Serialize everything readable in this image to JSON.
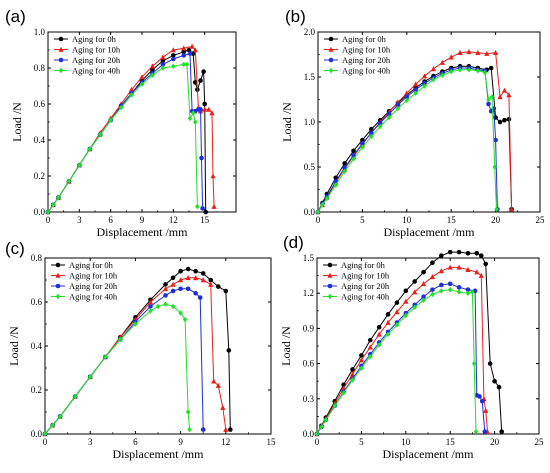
{
  "chart_data": [
    {
      "type": "line",
      "panel_label": "(a)",
      "xlabel": "Displacement /mm",
      "ylabel": "Load /N",
      "xlim": [
        0,
        18
      ],
      "ylim": [
        0,
        1.0
      ],
      "xticks": [
        0,
        3,
        6,
        9,
        12,
        15
      ],
      "yticks": [
        0.0,
        0.2,
        0.4,
        0.6,
        0.8,
        1.0
      ],
      "legend_position": "top-left",
      "series": [
        {
          "name": "Aging for 0h",
          "color": "#000000",
          "marker": "circle",
          "x": [
            0,
            0.5,
            1,
            2,
            3,
            4,
            5,
            6,
            7,
            8,
            9,
            10,
            11,
            12,
            13,
            13.5,
            13.9,
            14.1,
            14.3,
            14.6,
            14.9,
            15.0,
            15.1
          ],
          "y": [
            0,
            0.04,
            0.08,
            0.17,
            0.26,
            0.35,
            0.43,
            0.51,
            0.59,
            0.66,
            0.73,
            0.79,
            0.84,
            0.87,
            0.89,
            0.9,
            0.88,
            0.72,
            0.68,
            0.73,
            0.78,
            0.6,
            0.0
          ]
        },
        {
          "name": "Aging for 10h",
          "color": "#e8201a",
          "marker": "triangle",
          "x": [
            0,
            0.5,
            1,
            2,
            3,
            4,
            5,
            6,
            7,
            8,
            9,
            10,
            11,
            12,
            13,
            13.8,
            14.1,
            14.4,
            14.6,
            15,
            15.4,
            15.7,
            15.8,
            15.9
          ],
          "y": [
            0,
            0.04,
            0.08,
            0.17,
            0.26,
            0.35,
            0.44,
            0.52,
            0.6,
            0.68,
            0.75,
            0.81,
            0.86,
            0.9,
            0.91,
            0.92,
            0.9,
            0.58,
            0.56,
            0.57,
            0.57,
            0.55,
            0.2,
            0.03
          ]
        },
        {
          "name": "Aging for 20h",
          "color": "#1f2fd6",
          "marker": "circle",
          "x": [
            0,
            0.5,
            1,
            2,
            3,
            4,
            5,
            6,
            7,
            8,
            9,
            10,
            11,
            12,
            13,
            13.6,
            13.8,
            14.1,
            14.4,
            14.6,
            14.7,
            14.8
          ],
          "y": [
            0,
            0.04,
            0.08,
            0.17,
            0.26,
            0.35,
            0.43,
            0.51,
            0.59,
            0.66,
            0.72,
            0.77,
            0.82,
            0.85,
            0.87,
            0.88,
            0.56,
            0.56,
            0.57,
            0.57,
            0.3,
            0.02
          ]
        },
        {
          "name": "Aging for 40h",
          "color": "#22e02a",
          "marker": "diamond",
          "x": [
            0,
            0.5,
            1,
            2,
            3,
            4,
            5,
            6,
            7,
            8,
            9,
            10,
            11,
            12,
            13,
            13.3,
            13.6,
            13.9,
            14.1,
            14.3
          ],
          "y": [
            0,
            0.04,
            0.08,
            0.17,
            0.26,
            0.35,
            0.43,
            0.51,
            0.58,
            0.65,
            0.71,
            0.76,
            0.8,
            0.81,
            0.82,
            0.82,
            0.52,
            0.55,
            0.5,
            0.03
          ]
        }
      ]
    },
    {
      "type": "line",
      "panel_label": "(b)",
      "xlabel": "Displacement /mm",
      "ylabel": "Load /N",
      "xlim": [
        0,
        25
      ],
      "ylim": [
        0,
        2.0
      ],
      "xticks": [
        0,
        5,
        10,
        15,
        20,
        25
      ],
      "yticks": [
        0.0,
        0.5,
        1.0,
        1.5,
        2.0
      ],
      "legend_position": "top-left",
      "series": [
        {
          "name": "Aging for 0h",
          "color": "#000000",
          "marker": "circle",
          "x": [
            0,
            0.5,
            1,
            2,
            3,
            4,
            5,
            6,
            7,
            8,
            9,
            10,
            11,
            12,
            13,
            14,
            15,
            16,
            17,
            18,
            19,
            19.5,
            20,
            20.5,
            21,
            21.5,
            21.8
          ],
          "y": [
            0,
            0.1,
            0.2,
            0.38,
            0.54,
            0.68,
            0.8,
            0.92,
            1.02,
            1.12,
            1.21,
            1.3,
            1.38,
            1.45,
            1.51,
            1.56,
            1.6,
            1.62,
            1.62,
            1.6,
            1.58,
            1.6,
            1.05,
            1.0,
            1.02,
            1.03,
            0.03
          ]
        },
        {
          "name": "Aging for 10h",
          "color": "#e8201a",
          "marker": "triangle",
          "x": [
            0,
            0.5,
            1,
            2,
            3,
            4,
            5,
            6,
            7,
            8,
            9,
            10,
            11,
            12,
            13,
            14,
            15,
            16,
            17,
            18,
            19,
            20,
            20.5,
            21,
            21.5,
            21.8
          ],
          "y": [
            0,
            0.08,
            0.16,
            0.33,
            0.48,
            0.62,
            0.75,
            0.88,
            1.0,
            1.11,
            1.22,
            1.32,
            1.42,
            1.51,
            1.59,
            1.66,
            1.72,
            1.77,
            1.78,
            1.77,
            1.76,
            1.77,
            1.28,
            1.35,
            1.3,
            0.03
          ]
        },
        {
          "name": "Aging for 20h",
          "color": "#1f2fd6",
          "marker": "circle",
          "x": [
            0,
            0.5,
            1,
            2,
            3,
            4,
            5,
            6,
            7,
            8,
            9,
            10,
            11,
            12,
            13,
            14,
            15,
            16,
            17,
            18,
            18.8,
            19.2,
            19.5,
            19.8,
            20.0,
            20.2
          ],
          "y": [
            0,
            0.09,
            0.17,
            0.34,
            0.49,
            0.63,
            0.76,
            0.88,
            0.99,
            1.09,
            1.19,
            1.28,
            1.36,
            1.43,
            1.49,
            1.54,
            1.58,
            1.6,
            1.6,
            1.58,
            1.57,
            1.2,
            1.12,
            1.15,
            0.8,
            0.03
          ]
        },
        {
          "name": "Aging for 40h",
          "color": "#22e02a",
          "marker": "diamond",
          "x": [
            0,
            0.5,
            1,
            2,
            3,
            4,
            5,
            6,
            7,
            8,
            9,
            10,
            11,
            12,
            13,
            14,
            15,
            16,
            17,
            18,
            18.8,
            19.2,
            19.6,
            19.9,
            20.1
          ],
          "y": [
            0,
            0.08,
            0.15,
            0.3,
            0.45,
            0.59,
            0.72,
            0.84,
            0.95,
            1.05,
            1.15,
            1.24,
            1.32,
            1.4,
            1.47,
            1.52,
            1.56,
            1.58,
            1.58,
            1.57,
            1.55,
            1.25,
            1.28,
            0.5,
            0.03
          ]
        }
      ]
    },
    {
      "type": "line",
      "panel_label": "(c)",
      "xlabel": "Displacement /mm",
      "ylabel": "Load /N",
      "xlim": [
        0,
        15
      ],
      "ylim": [
        0,
        0.8
      ],
      "xticks": [
        0,
        3,
        6,
        9,
        12,
        15
      ],
      "yticks": [
        0.0,
        0.2,
        0.4,
        0.6,
        0.8
      ],
      "legend_position": "top-left",
      "series": [
        {
          "name": "Aging for 0h",
          "color": "#000000",
          "marker": "circle",
          "x": [
            0,
            0.5,
            1,
            2,
            3,
            4,
            5,
            6,
            7,
            8,
            8.5,
            9,
            9.5,
            10,
            10.5,
            11,
            11.5,
            12,
            12.2,
            12.3
          ],
          "y": [
            0,
            0.04,
            0.08,
            0.17,
            0.26,
            0.35,
            0.44,
            0.53,
            0.61,
            0.68,
            0.71,
            0.74,
            0.75,
            0.74,
            0.73,
            0.7,
            0.67,
            0.65,
            0.38,
            0.02
          ]
        },
        {
          "name": "Aging for 10h",
          "color": "#e8201a",
          "marker": "triangle",
          "x": [
            0,
            0.5,
            1,
            2,
            3,
            4,
            5,
            6,
            7,
            8,
            8.5,
            9,
            9.5,
            10,
            10.5,
            11,
            11.2,
            11.5,
            11.8,
            12.0
          ],
          "y": [
            0,
            0.04,
            0.08,
            0.17,
            0.26,
            0.35,
            0.44,
            0.52,
            0.6,
            0.66,
            0.68,
            0.7,
            0.71,
            0.71,
            0.7,
            0.68,
            0.24,
            0.22,
            0.12,
            0.02
          ]
        },
        {
          "name": "Aging for 20h",
          "color": "#1f2fd6",
          "marker": "circle",
          "x": [
            0,
            0.5,
            1,
            2,
            3,
            4,
            5,
            6,
            7,
            8,
            8.5,
            9,
            9.5,
            10,
            10.3,
            10.5
          ],
          "y": [
            0,
            0.04,
            0.08,
            0.17,
            0.26,
            0.35,
            0.43,
            0.51,
            0.58,
            0.63,
            0.65,
            0.66,
            0.66,
            0.64,
            0.62,
            0.02
          ]
        },
        {
          "name": "Aging for 40h",
          "color": "#22e02a",
          "marker": "diamond",
          "x": [
            0,
            0.5,
            1,
            2,
            3,
            4,
            5,
            6,
            7,
            7.5,
            8,
            8.5,
            9,
            9.3,
            9.5,
            9.6
          ],
          "y": [
            0,
            0.04,
            0.08,
            0.17,
            0.26,
            0.35,
            0.43,
            0.5,
            0.56,
            0.58,
            0.59,
            0.58,
            0.55,
            0.52,
            0.1,
            0.02
          ]
        }
      ]
    },
    {
      "type": "line",
      "panel_label": "(d)",
      "xlabel": "Displacement /mm",
      "ylabel": "Load /N",
      "xlim": [
        0,
        25
      ],
      "ylim": [
        0,
        1.5
      ],
      "xticks": [
        0,
        5,
        10,
        15,
        20,
        25
      ],
      "yticks": [
        0.0,
        0.3,
        0.6,
        0.9,
        1.2,
        1.5
      ],
      "legend_position": "top-left",
      "series": [
        {
          "name": "Aging for 0h",
          "color": "#000000",
          "marker": "circle",
          "x": [
            0,
            0.5,
            1,
            2,
            3,
            4,
            5,
            6,
            7,
            8,
            9,
            10,
            11,
            12,
            13,
            14,
            15,
            16,
            17,
            18,
            18.5,
            19,
            19.5,
            20,
            20.5,
            20.8
          ],
          "y": [
            0,
            0.07,
            0.14,
            0.28,
            0.42,
            0.55,
            0.67,
            0.8,
            0.91,
            1.02,
            1.12,
            1.22,
            1.3,
            1.38,
            1.46,
            1.52,
            1.55,
            1.55,
            1.54,
            1.54,
            1.52,
            1.45,
            0.6,
            0.45,
            0.4,
            0.02
          ]
        },
        {
          "name": "Aging for 10h",
          "color": "#e8201a",
          "marker": "triangle",
          "x": [
            0,
            0.5,
            1,
            2,
            3,
            4,
            5,
            6,
            7,
            8,
            9,
            10,
            11,
            12,
            13,
            14,
            15,
            16,
            17,
            18,
            18.5,
            18.8,
            19.0,
            19.2
          ],
          "y": [
            0,
            0.07,
            0.13,
            0.26,
            0.39,
            0.51,
            0.63,
            0.74,
            0.85,
            0.95,
            1.04,
            1.13,
            1.21,
            1.28,
            1.34,
            1.39,
            1.42,
            1.42,
            1.4,
            1.38,
            1.35,
            0.3,
            0.2,
            0.02
          ]
        },
        {
          "name": "Aging for 20h",
          "color": "#1f2fd6",
          "marker": "circle",
          "x": [
            0,
            0.5,
            1,
            2,
            3,
            4,
            5,
            6,
            7,
            8,
            9,
            10,
            11,
            12,
            13,
            14,
            15,
            16,
            17,
            17.8,
            18.0,
            18.3,
            18.6,
            18.9
          ],
          "y": [
            0,
            0.06,
            0.12,
            0.24,
            0.36,
            0.47,
            0.58,
            0.68,
            0.78,
            0.87,
            0.95,
            1.03,
            1.1,
            1.17,
            1.23,
            1.27,
            1.28,
            1.25,
            1.23,
            1.22,
            0.33,
            0.32,
            0.28,
            0.02
          ]
        },
        {
          "name": "Aging for 40h",
          "color": "#22e02a",
          "marker": "diamond",
          "x": [
            0,
            0.5,
            1,
            2,
            3,
            4,
            5,
            6,
            7,
            8,
            9,
            10,
            11,
            12,
            13,
            14,
            15,
            16,
            17,
            17.5,
            17.7,
            17.9
          ],
          "y": [
            0,
            0.06,
            0.12,
            0.24,
            0.35,
            0.46,
            0.56,
            0.66,
            0.76,
            0.85,
            0.93,
            1.01,
            1.08,
            1.14,
            1.19,
            1.22,
            1.23,
            1.21,
            1.2,
            1.21,
            0.6,
            0.02
          ]
        }
      ]
    }
  ]
}
